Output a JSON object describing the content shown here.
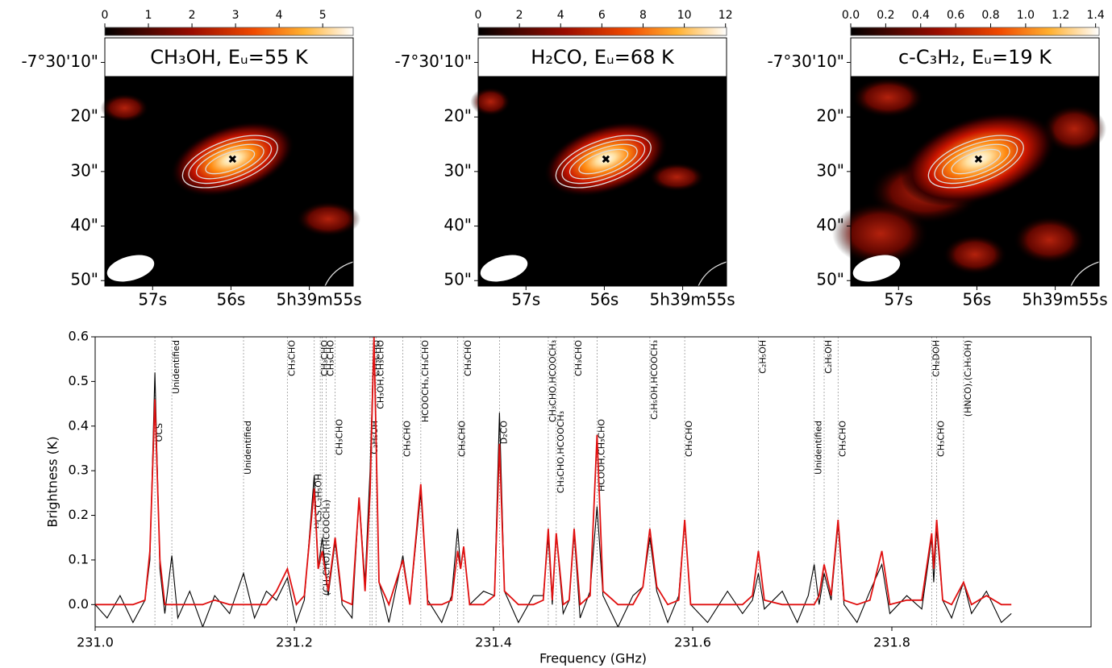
{
  "chart_data": [
    {
      "type": "map",
      "title": "CH₃OH, Eᵤ=55 K",
      "colorbar_lim": [
        0,
        5.7
      ],
      "colorbar_ticks": [
        0,
        1,
        2,
        3,
        4,
        5
      ],
      "xlim": [
        57.61,
        54.44
      ],
      "xticks": [
        {
          "value": 57,
          "label": "57s"
        },
        {
          "value": 56,
          "label": "56s"
        },
        {
          "value": 55,
          "label": "5h39m55s"
        }
      ],
      "ylim": [
        5.5,
        51
      ],
      "yticks": [
        {
          "value": 10,
          "label": "-7°30'10\""
        },
        {
          "value": 20,
          "label": "20\""
        },
        {
          "value": 30,
          "label": "30\""
        },
        {
          "value": 40,
          "label": "40\""
        },
        {
          "value": 50,
          "label": "50\""
        }
      ],
      "marker": {
        "x": 55.98,
        "y": 27.7
      }
    },
    {
      "type": "map",
      "title": "H₂CO, Eᵤ=68 K",
      "colorbar_lim": [
        0,
        12.05
      ],
      "colorbar_ticks": [
        0,
        2,
        4,
        6,
        8,
        10,
        12
      ],
      "xlim": [
        57.61,
        54.44
      ],
      "xticks": [
        {
          "value": 57,
          "label": "57s"
        },
        {
          "value": 56,
          "label": "56s"
        },
        {
          "value": 55,
          "label": "5h39m55s"
        }
      ],
      "ylim": [
        5.5,
        51
      ],
      "yticks": [
        {
          "value": 10,
          "label": "-7°30'10\""
        },
        {
          "value": 20,
          "label": "20\""
        },
        {
          "value": 30,
          "label": "30\""
        },
        {
          "value": 40,
          "label": "40\""
        },
        {
          "value": 50,
          "label": "50\""
        }
      ],
      "marker": {
        "x": 55.98,
        "y": 27.7
      }
    },
    {
      "type": "map",
      "title": "c-C₃H₂, Eᵤ=19 K",
      "colorbar_lim": [
        0,
        1.42
      ],
      "colorbar_ticks": [
        {
          "value": 0,
          "label": "0.0"
        },
        0.2,
        0.4,
        0.6,
        0.8,
        {
          "value": 1,
          "label": "1.0"
        },
        1.2,
        1.4
      ],
      "xlim": [
        57.61,
        54.44
      ],
      "xticks": [
        {
          "value": 57,
          "label": "57s"
        },
        {
          "value": 56,
          "label": "56s"
        },
        {
          "value": 55,
          "label": "5h39m55s"
        }
      ],
      "ylim": [
        5.5,
        51
      ],
      "yticks": [
        {
          "value": 10,
          "label": "-7°30'10\""
        },
        {
          "value": 20,
          "label": "20\""
        },
        {
          "value": 30,
          "label": "30\""
        },
        {
          "value": 40,
          "label": "40\""
        },
        {
          "value": 50,
          "label": "50\""
        }
      ],
      "marker": {
        "x": 55.98,
        "y": 27.7
      }
    },
    {
      "type": "line",
      "xlabel": "Frequency (GHz)",
      "ylabel": "Brightness (K)",
      "xlim": [
        231.0,
        232.0
      ],
      "xticks": [
        {
          "value": 231,
          "label": "231.0"
        },
        231.2,
        231.4,
        231.6,
        231.8
      ],
      "ylim": [
        -0.05,
        0.6
      ],
      "yticks": [
        {
          "value": 0,
          "label": "0.0"
        },
        0.1,
        0.2,
        0.3,
        0.4,
        0.5,
        0.6
      ],
      "x": [
        231.0,
        231.012,
        231.025,
        231.038,
        231.05,
        231.055,
        231.06,
        231.065,
        231.07,
        231.077,
        231.083,
        231.095,
        231.108,
        231.12,
        231.135,
        231.149,
        231.16,
        231.172,
        231.182,
        231.193,
        231.202,
        231.21,
        231.22,
        231.224,
        231.228,
        231.234,
        231.241,
        231.248,
        231.258,
        231.265,
        231.271,
        231.276,
        231.28,
        231.285,
        231.295,
        231.309,
        231.316,
        231.327,
        231.334,
        231.348,
        231.358,
        231.364,
        231.367,
        231.37,
        231.376,
        231.39,
        231.401,
        231.406,
        231.411,
        231.425,
        231.44,
        231.45,
        231.455,
        231.459,
        231.463,
        231.47,
        231.476,
        231.481,
        231.487,
        231.497,
        231.504,
        231.51,
        231.525,
        231.54,
        231.55,
        231.557,
        231.564,
        231.575,
        231.586,
        231.592,
        231.598,
        231.615,
        231.635,
        231.65,
        231.66,
        231.666,
        231.672,
        231.69,
        231.705,
        231.716,
        231.722,
        231.727,
        231.732,
        231.739,
        231.746,
        231.752,
        231.765,
        231.778,
        231.79,
        231.798,
        231.815,
        231.83,
        231.84,
        231.842,
        231.845,
        231.851,
        231.86,
        231.872,
        231.88,
        231.895,
        231.91,
        231.92
      ],
      "series": [
        {
          "color": "#000000",
          "values": [
            0.0,
            -0.03,
            0.02,
            -0.04,
            0.01,
            0.1,
            0.52,
            0.08,
            -0.02,
            0.11,
            -0.03,
            0.03,
            -0.05,
            0.02,
            -0.02,
            0.07,
            -0.03,
            0.03,
            0.01,
            0.06,
            -0.04,
            0.01,
            0.29,
            0.08,
            0.15,
            0.02,
            0.14,
            0.0,
            -0.03,
            0.24,
            0.05,
            0.3,
            0.6,
            0.05,
            -0.04,
            0.11,
            0.0,
            0.25,
            0.01,
            -0.04,
            0.02,
            0.17,
            0.08,
            0.13,
            0.0,
            0.03,
            0.02,
            0.43,
            0.03,
            -0.04,
            0.02,
            0.02,
            0.15,
            0.0,
            0.16,
            -0.02,
            0.01,
            0.16,
            -0.03,
            0.03,
            0.22,
            0.02,
            -0.05,
            0.02,
            0.04,
            0.15,
            0.03,
            -0.04,
            0.02,
            0.19,
            0.0,
            -0.04,
            0.03,
            -0.02,
            0.01,
            0.07,
            -0.01,
            0.03,
            -0.04,
            0.02,
            0.09,
            0.0,
            0.07,
            0.01,
            0.18,
            0.0,
            -0.04,
            0.03,
            0.09,
            -0.02,
            0.02,
            -0.01,
            0.15,
            0.05,
            0.17,
            0.01,
            -0.03,
            0.05,
            -0.02,
            0.03,
            -0.04,
            -0.02
          ]
        },
        {
          "color": "#e01010",
          "values": [
            0.0,
            0.0,
            0.0,
            0.0,
            0.01,
            0.12,
            0.46,
            0.1,
            0.0,
            0.0,
            0.0,
            0.0,
            0.0,
            0.01,
            0.0,
            0.0,
            0.0,
            0.0,
            0.03,
            0.08,
            0.0,
            0.02,
            0.26,
            0.08,
            0.12,
            0.03,
            0.15,
            0.01,
            0.0,
            0.24,
            0.03,
            0.25,
            0.6,
            0.05,
            0.0,
            0.1,
            0.0,
            0.27,
            0.0,
            0.0,
            0.01,
            0.12,
            0.08,
            0.13,
            0.0,
            0.0,
            0.02,
            0.36,
            0.03,
            0.0,
            0.0,
            0.01,
            0.17,
            0.01,
            0.16,
            0.0,
            0.01,
            0.17,
            0.0,
            0.02,
            0.38,
            0.03,
            0.0,
            0.0,
            0.04,
            0.17,
            0.04,
            0.0,
            0.01,
            0.19,
            0.0,
            0.0,
            0.0,
            0.0,
            0.02,
            0.12,
            0.01,
            0.0,
            0.0,
            0.0,
            0.0,
            0.02,
            0.09,
            0.02,
            0.19,
            0.01,
            0.0,
            0.01,
            0.12,
            0.0,
            0.01,
            0.01,
            0.16,
            0.08,
            0.19,
            0.01,
            0.0,
            0.05,
            0.0,
            0.02,
            0.0,
            0.0
          ]
        }
      ],
      "lines": [
        {
          "x": 231.06,
          "label": "OCS"
        },
        {
          "x": 231.077,
          "label": "Unidentified"
        },
        {
          "x": 231.149,
          "label": "Unidentified"
        },
        {
          "x": 231.193,
          "label": "CH₃CHO"
        },
        {
          "x": 231.22,
          "label": "¹³CS,C₂H₅OH"
        },
        {
          "x": 231.226,
          "label": "CH₃CHO"
        },
        {
          "x": 231.228,
          "label": "(CH₃CHO),(HCOOCH₃)"
        },
        {
          "x": 231.232,
          "label": "CH₃CHO"
        },
        {
          "x": 231.241,
          "label": "CH₃CHO"
        },
        {
          "x": 231.276,
          "label": "C₂H₅OH"
        },
        {
          "x": 231.278,
          "label": "CH₃CHO"
        },
        {
          "x": 231.282,
          "label": "CH₃OH,CH₃CHO"
        },
        {
          "x": 231.309,
          "label": "CH₃CHO"
        },
        {
          "x": 231.327,
          "label": "HCOOCH₃,CH₃CHO"
        },
        {
          "x": 231.364,
          "label": "CH₃CHO"
        },
        {
          "x": 231.37,
          "label": "CH₃CHO"
        },
        {
          "x": 231.406,
          "label": "D₂CO"
        },
        {
          "x": 231.455,
          "label": "CH₃CHO,HCOOCH₃"
        },
        {
          "x": 231.463,
          "label": "CH₃CHO,HCOOCH₃"
        },
        {
          "x": 231.481,
          "label": "CH₃CHO"
        },
        {
          "x": 231.504,
          "label": "HCOOH,CH₃CHO"
        },
        {
          "x": 231.557,
          "label": "C₂H₅OH,HCOOCH₃"
        },
        {
          "x": 231.592,
          "label": "CH₃CHO"
        },
        {
          "x": 231.666,
          "label": "C₂H₅OH"
        },
        {
          "x": 231.722,
          "label": "Unidentified"
        },
        {
          "x": 231.732,
          "label": "C₂H₅OH"
        },
        {
          "x": 231.746,
          "label": "CH₃CHO"
        },
        {
          "x": 231.84,
          "label": "CH₂DOH"
        },
        {
          "x": 231.845,
          "label": "CH₃CHO"
        },
        {
          "x": 231.872,
          "label": "(HNCO),(C₂H₅OH)"
        }
      ]
    }
  ]
}
